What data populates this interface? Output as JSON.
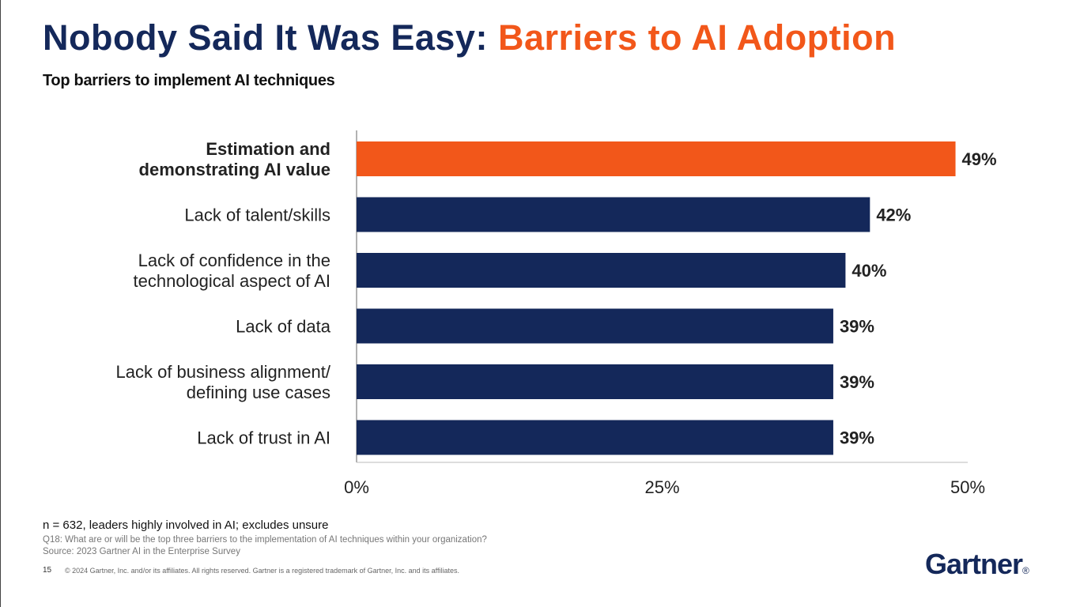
{
  "header": {
    "title_main": "Nobody Said It Was Easy: ",
    "title_accent": "Barriers to AI Adoption",
    "subtitle": "Top barriers to implement AI techniques"
  },
  "colors": {
    "title": "#14285a",
    "accent": "#f2571a",
    "bar_default": "#14285a",
    "bar_highlight": "#f2571a"
  },
  "chart_data": {
    "type": "bar",
    "orientation": "horizontal",
    "title": "Top barriers to implement AI techniques",
    "categories": [
      [
        "Estimation and",
        "demonstrating AI value"
      ],
      [
        "Lack of talent/skills"
      ],
      [
        "Lack of confidence in the",
        "technological aspect of AI"
      ],
      [
        "Lack of data"
      ],
      [
        "Lack of business alignment/",
        "defining use cases"
      ],
      [
        "Lack of trust in AI"
      ]
    ],
    "values": [
      49,
      42,
      40,
      39,
      39,
      39
    ],
    "value_labels": [
      "49%",
      "42%",
      "40%",
      "39%",
      "39%",
      "39%"
    ],
    "highlight_index": 0,
    "xlim": [
      0,
      50
    ],
    "xticks": [
      0,
      25,
      50
    ],
    "xtick_labels": [
      "0%",
      "25%",
      "50%"
    ],
    "xlabel": "",
    "ylabel": "",
    "grid": false
  },
  "footer": {
    "sample": "n = 632, leaders highly involved in AI; excludes unsure",
    "question": "Q18: What are or will be the top three barriers to the implementation of AI techniques within your organization?",
    "source": "Source: 2023 Gartner AI in the Enterprise Survey",
    "page_number": "15",
    "copyright": "© 2024 Gartner, Inc. and/or its affiliates. All rights reserved. Gartner is a registered trademark of Gartner, Inc. and its affiliates."
  },
  "logo": {
    "text": "Gartner",
    "mark": "®"
  }
}
